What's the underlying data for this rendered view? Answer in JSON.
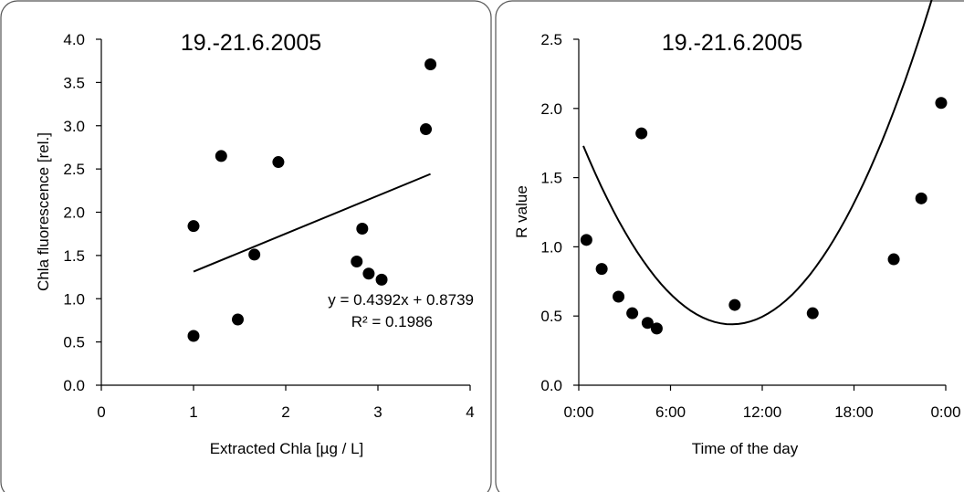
{
  "charts": [
    {
      "chart_data": {
        "type": "scatter",
        "title": "19.-21.6.2005",
        "xlabel": "Extracted Chla [µg / L]",
        "ylabel": "Chla  fluorescence [rel.]",
        "xlim": [
          0,
          4
        ],
        "ylim": [
          0,
          4
        ],
        "xticks": [
          0,
          1,
          2,
          3,
          4
        ],
        "xtick_labels": [
          "0",
          "1",
          "2",
          "3",
          "4"
        ],
        "yticks": [
          0,
          0.5,
          1,
          1.5,
          2,
          2.5,
          3,
          3.5,
          4
        ],
        "ytick_labels": [
          "0.0",
          "0.5",
          "1.0",
          "1.5",
          "2.0",
          "2.5",
          "3.0",
          "3.5",
          "4.0"
        ],
        "series": [
          {
            "x": [
              1.0,
              1.0,
              1.3,
              1.48,
              1.66,
              1.92,
              2.77,
              2.83,
              2.9,
              3.04,
              3.52,
              3.57
            ],
            "y": [
              0.57,
              1.84,
              2.65,
              0.76,
              1.51,
              2.58,
              1.43,
              1.81,
              1.29,
              1.22,
              2.96,
              3.71
            ]
          }
        ],
        "trendline": {
          "type": "linear",
          "slope": 0.4392,
          "intercept": 0.8739,
          "x_range": [
            1.0,
            3.57
          ]
        },
        "annotations": [
          "y = 0.4392x  + 0.8739",
          "R² = 0.1986"
        ]
      }
    },
    {
      "chart_data": {
        "type": "scatter",
        "title": "19.-21.6.2005",
        "xlabel": "Time of the day",
        "ylabel": "R value",
        "xlim": [
          0,
          24
        ],
        "ylim": [
          0,
          2.5
        ],
        "xticks": [
          0,
          6,
          12,
          18,
          24
        ],
        "xtick_labels": [
          "0:00",
          "6:00",
          "12:00",
          "18:00",
          "0:00"
        ],
        "yticks": [
          0,
          0.5,
          1,
          1.5,
          2,
          2.5
        ],
        "ytick_labels": [
          "0.0",
          "0.5",
          "1.0",
          "1.5",
          "2.0",
          "2.5"
        ],
        "series": [
          {
            "x": [
              0.5,
              1.5,
              2.6,
              3.5,
              4.1,
              4.5,
              5.1,
              10.2,
              15.3,
              20.6,
              22.4,
              23.7
            ],
            "y": [
              1.05,
              0.84,
              0.64,
              0.52,
              1.82,
              0.45,
              0.41,
              0.58,
              0.52,
              0.91,
              1.35,
              2.04
            ]
          }
        ],
        "trendline": {
          "type": "polynomial",
          "degree": 2,
          "vertex_x": 10.0,
          "vertex_y": 0.44,
          "a": 0.0137,
          "x_range": [
            0.3,
            23.7
          ]
        }
      }
    }
  ]
}
